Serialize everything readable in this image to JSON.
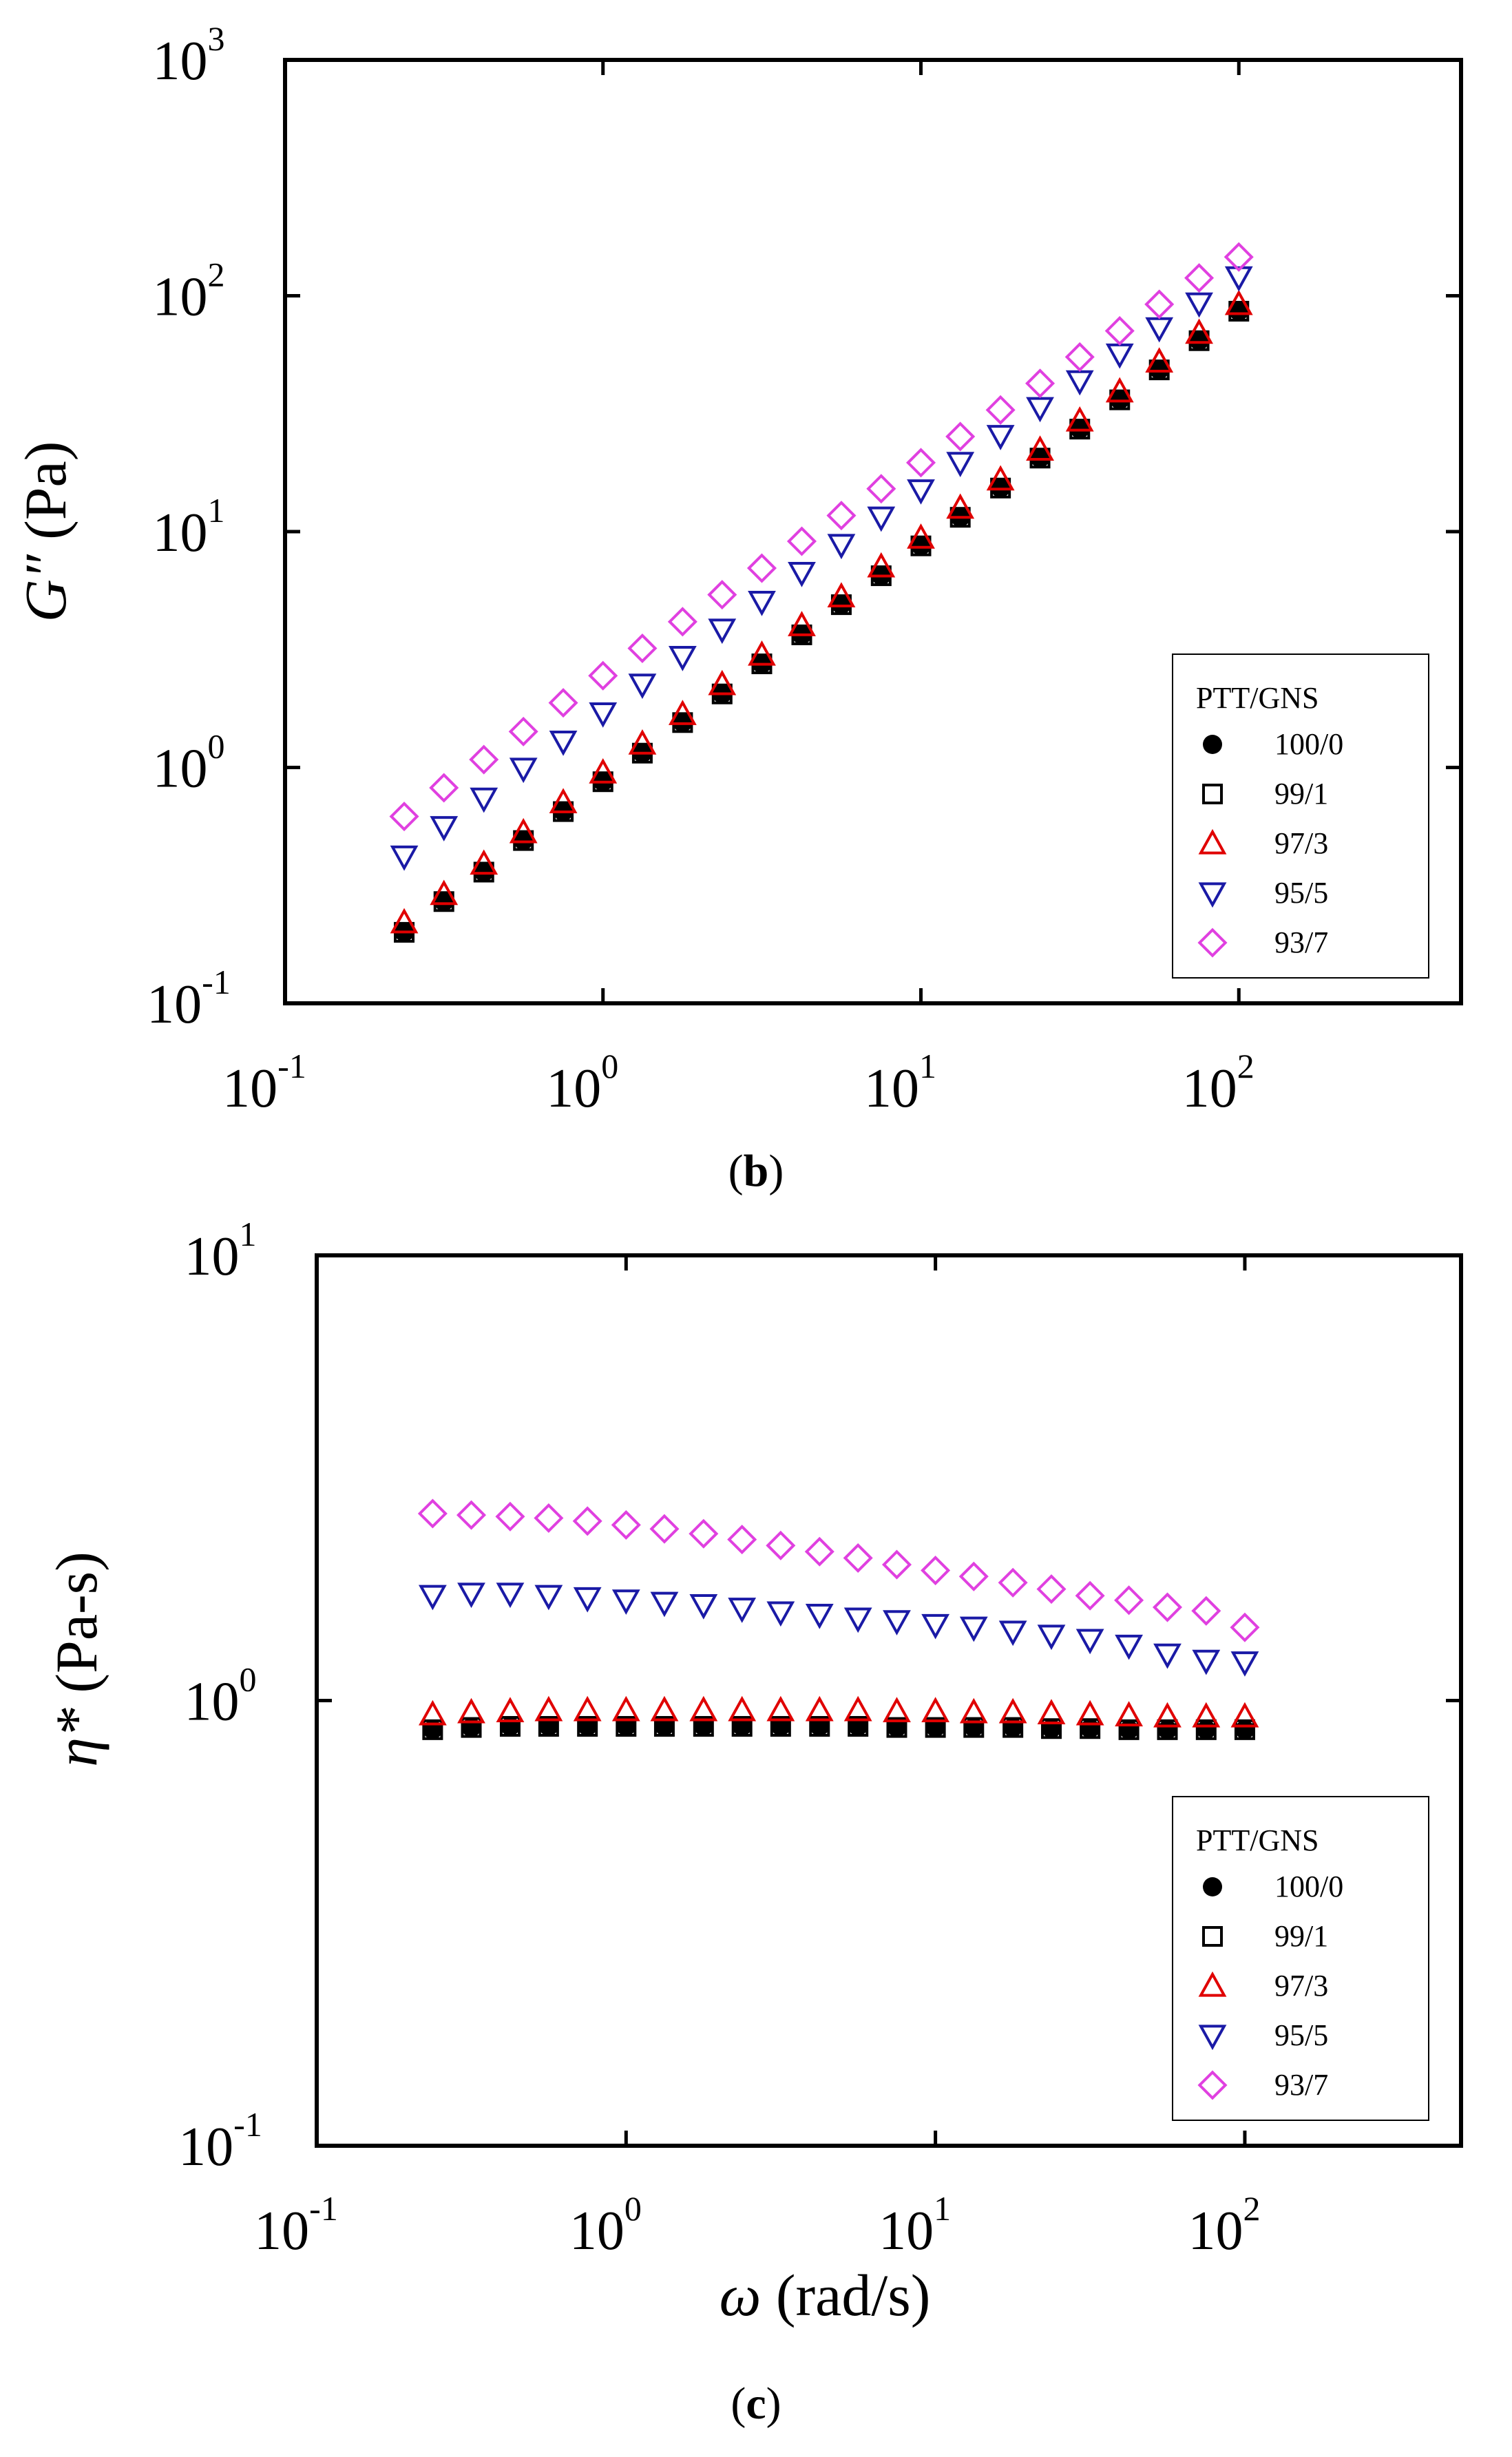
{
  "chart_data": [
    {
      "type": "scatter",
      "panel_label": {
        "open": "(",
        "letter": "b",
        "close": ")"
      },
      "xscale": "log",
      "yscale": "log",
      "xlim": [
        0.1,
        500
      ],
      "ylim": [
        0.1,
        1000
      ],
      "xlabel": "",
      "ylabel": {
        "symbol": "G″",
        "unit": " (Pa)"
      },
      "xticks": [
        {
          "base": "10",
          "exp": "-1"
        },
        {
          "base": "10",
          "exp": "0"
        },
        {
          "base": "10",
          "exp": "1"
        },
        {
          "base": "10",
          "exp": "2"
        }
      ],
      "yticks": [
        {
          "base": "10",
          "exp": "-1"
        },
        {
          "base": "10",
          "exp": "0"
        },
        {
          "base": "10",
          "exp": "1"
        },
        {
          "base": "10",
          "exp": "2"
        },
        {
          "base": "10",
          "exp": "3"
        }
      ],
      "legend": {
        "title": "PTT/GNS",
        "position": "lower-right"
      },
      "x": [
        0.237,
        0.316,
        0.422,
        0.562,
        0.75,
        1.0,
        1.33,
        1.78,
        2.37,
        3.16,
        4.22,
        5.62,
        7.5,
        10.0,
        13.3,
        17.8,
        23.7,
        31.6,
        42.2,
        56.2,
        75.0,
        100
      ],
      "series": [
        {
          "name": "100/0",
          "marker": "circle-filled",
          "color": "#000000",
          "values": [
            0.2,
            0.27,
            0.36,
            0.49,
            0.65,
            0.87,
            1.15,
            1.55,
            2.05,
            2.75,
            3.65,
            4.9,
            6.5,
            8.7,
            11.5,
            15.3,
            20.5,
            27.2,
            36.2,
            48.5,
            64.5,
            86
          ]
        },
        {
          "name": "99/1",
          "marker": "square-open",
          "color": "#000000",
          "values": [
            0.2,
            0.27,
            0.36,
            0.49,
            0.65,
            0.87,
            1.15,
            1.55,
            2.05,
            2.75,
            3.65,
            4.9,
            6.5,
            8.7,
            11.5,
            15.3,
            20.5,
            27.2,
            36.2,
            48.5,
            64.5,
            86
          ]
        },
        {
          "name": "97/3",
          "marker": "triangle-up-open",
          "color": "#e00000",
          "values": [
            0.22,
            0.29,
            0.39,
            0.53,
            0.71,
            0.95,
            1.26,
            1.68,
            2.25,
            3.0,
            4.0,
            5.3,
            7.1,
            9.4,
            12.6,
            16.6,
            22.2,
            29.5,
            39.2,
            52.5,
            69.5,
            92
          ]
        },
        {
          "name": "95/5",
          "marker": "triangle-down-open",
          "color": "#1a1aa6",
          "values": [
            0.42,
            0.56,
            0.74,
            0.99,
            1.29,
            1.7,
            2.25,
            2.95,
            3.85,
            5.05,
            6.7,
            8.8,
            11.5,
            15.0,
            19.6,
            25.5,
            33.5,
            43.5,
            56.5,
            73,
            93,
            120
          ]
        },
        {
          "name": "93/7",
          "marker": "diamond-open",
          "color": "#e040e0",
          "values": [
            0.62,
            0.82,
            1.08,
            1.42,
            1.88,
            2.45,
            3.2,
            4.15,
            5.4,
            7.0,
            9.1,
            11.7,
            15.2,
            19.6,
            25.3,
            32.8,
            42.5,
            55,
            71,
            92,
            119,
            146
          ]
        }
      ]
    },
    {
      "type": "scatter",
      "panel_label": {
        "open": "(",
        "letter": "c",
        "close": ")"
      },
      "xscale": "log",
      "yscale": "log",
      "xlim": [
        0.1,
        500
      ],
      "ylim": [
        0.1,
        10
      ],
      "xlabel": {
        "symbol": "ω",
        "unit": " (rad/s)"
      },
      "ylabel": {
        "symbol": "η*",
        "unit": " (Pa-s)"
      },
      "xticks": [
        {
          "base": "10",
          "exp": "-1"
        },
        {
          "base": "10",
          "exp": "0"
        },
        {
          "base": "10",
          "exp": "1"
        },
        {
          "base": "10",
          "exp": "2"
        }
      ],
      "yticks": [
        {
          "base": "10",
          "exp": "-1"
        },
        {
          "base": "10",
          "exp": "0"
        },
        {
          "base": "10",
          "exp": "1"
        }
      ],
      "legend": {
        "title": "PTT/GNS",
        "position": "lower-right"
      },
      "x": [
        0.237,
        0.316,
        0.422,
        0.562,
        0.75,
        1.0,
        1.33,
        1.78,
        2.37,
        3.16,
        4.22,
        5.62,
        7.5,
        10.0,
        13.3,
        17.8,
        23.7,
        31.6,
        42.2,
        56.2,
        75.0,
        100
      ],
      "series": [
        {
          "name": "100/0",
          "marker": "circle-filled",
          "color": "#000000",
          "values": [
            0.86,
            0.87,
            0.875,
            0.875,
            0.875,
            0.875,
            0.875,
            0.875,
            0.875,
            0.875,
            0.875,
            0.875,
            0.87,
            0.87,
            0.87,
            0.87,
            0.865,
            0.865,
            0.86,
            0.86,
            0.86,
            0.86
          ]
        },
        {
          "name": "99/1",
          "marker": "square-open",
          "color": "#000000",
          "values": [
            0.86,
            0.87,
            0.875,
            0.875,
            0.875,
            0.875,
            0.875,
            0.875,
            0.875,
            0.875,
            0.875,
            0.875,
            0.87,
            0.87,
            0.87,
            0.87,
            0.865,
            0.865,
            0.86,
            0.86,
            0.86,
            0.86
          ]
        },
        {
          "name": "97/3",
          "marker": "triangle-up-open",
          "color": "#e00000",
          "values": [
            0.93,
            0.94,
            0.945,
            0.95,
            0.95,
            0.95,
            0.95,
            0.95,
            0.95,
            0.95,
            0.95,
            0.95,
            0.945,
            0.945,
            0.94,
            0.94,
            0.935,
            0.93,
            0.925,
            0.92,
            0.92,
            0.92
          ]
        },
        {
          "name": "95/5",
          "marker": "triangle-down-open",
          "color": "#1a1aa6",
          "values": [
            1.72,
            1.74,
            1.74,
            1.72,
            1.7,
            1.68,
            1.66,
            1.64,
            1.61,
            1.58,
            1.56,
            1.53,
            1.51,
            1.48,
            1.46,
            1.43,
            1.4,
            1.37,
            1.33,
            1.27,
            1.23,
            1.22
          ]
        },
        {
          "name": "93/7",
          "marker": "diamond-open",
          "color": "#e040e0",
          "values": [
            2.63,
            2.61,
            2.59,
            2.57,
            2.53,
            2.48,
            2.43,
            2.37,
            2.3,
            2.23,
            2.16,
            2.09,
            2.02,
            1.96,
            1.9,
            1.84,
            1.78,
            1.72,
            1.68,
            1.62,
            1.59,
            1.46
          ]
        }
      ]
    }
  ]
}
